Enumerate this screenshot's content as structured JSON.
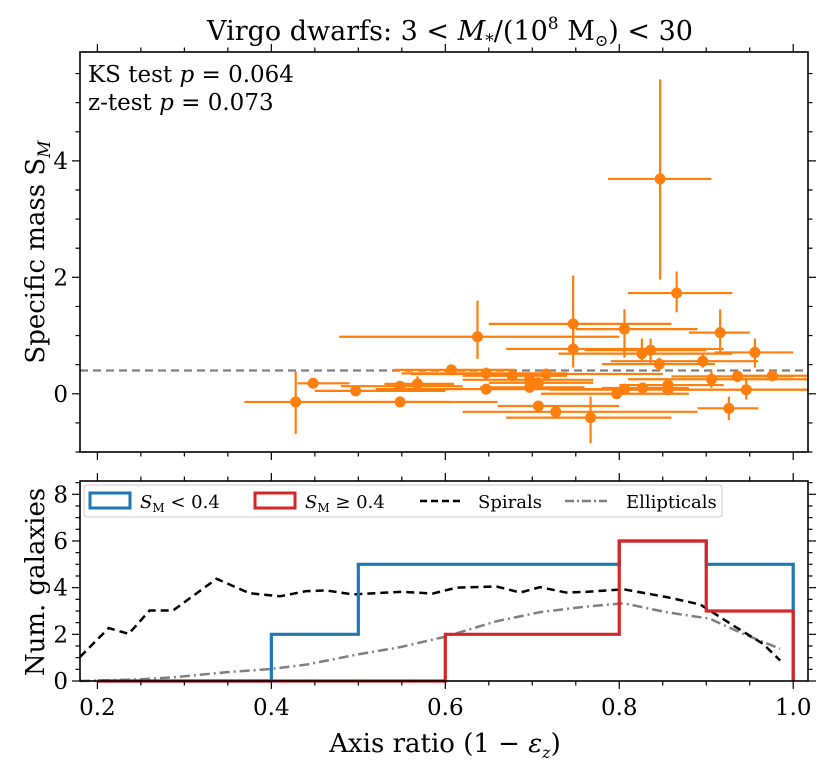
{
  "chart_data": [
    {
      "type": "scatter",
      "title": "Virgo dwarfs: 3 < M*/(10^8 M☉) < 30",
      "title_parts": {
        "pre": "Virgo dwarfs: 3 < ",
        "math": "M",
        "sub": "*",
        "mid": "/(10",
        "sup": "8",
        "post1": " M",
        "sun": "⊙",
        "post2": ") < 30"
      },
      "xlabel": "",
      "ylabel": "Specific mass S",
      "ylabel_sub": "M",
      "xlim": [
        0.18,
        1.017
      ],
      "ylim": [
        -1.0,
        5.87
      ],
      "yticks": [
        0,
        2,
        4
      ],
      "yticks_labels": [
        "0",
        "2",
        "4"
      ],
      "annotations": [
        "KS test p = 0.064",
        "z-test p = 0.073"
      ],
      "annotation_parts": [
        {
          "pre": "KS test ",
          "var": "p",
          "post": " = 0.064"
        },
        {
          "pre": "z-test ",
          "var": "p",
          "post": " = 0.073"
        }
      ],
      "threshold_line": {
        "y": 0.4,
        "style": "dashed",
        "color": "#808080"
      },
      "marker_color": "#ff7f0e",
      "points": [
        {
          "x": 0.428,
          "y": -0.14,
          "xerr": [
            0.369,
            0.607
          ],
          "yerr": [
            -0.69,
            0.38
          ]
        },
        {
          "x": 0.448,
          "y": 0.18,
          "xerr": [
            0.43,
            0.49
          ],
          "yerr": [
            0.12,
            0.24
          ]
        },
        {
          "x": 0.497,
          "y": 0.05,
          "xerr": [
            0.45,
            0.6
          ],
          "yerr": [
            0.0,
            0.1
          ]
        },
        {
          "x": 0.548,
          "y": 0.13,
          "xerr": [
            0.48,
            0.62
          ],
          "yerr": [
            0.06,
            0.2
          ]
        },
        {
          "x": 0.548,
          "y": -0.14,
          "xerr": [
            0.46,
            0.66
          ],
          "yerr": [
            -0.18,
            -0.1
          ]
        },
        {
          "x": 0.568,
          "y": 0.17,
          "xerr": [
            0.53,
            0.61
          ],
          "yerr": [
            0.05,
            0.3
          ]
        },
        {
          "x": 0.607,
          "y": 0.41,
          "xerr": [
            0.54,
            0.68
          ],
          "yerr": [
            0.36,
            0.46
          ]
        },
        {
          "x": 0.637,
          "y": 0.98,
          "xerr": [
            0.478,
            0.8
          ],
          "yerr": [
            0.6,
            1.6
          ]
        },
        {
          "x": 0.647,
          "y": 0.35,
          "xerr": [
            0.55,
            0.74
          ],
          "yerr": [
            0.25,
            0.45
          ]
        },
        {
          "x": 0.647,
          "y": 0.08,
          "xerr": [
            0.52,
            0.76
          ],
          "yerr": [
            0.02,
            0.14
          ]
        },
        {
          "x": 0.677,
          "y": 0.31,
          "xerr": [
            0.62,
            0.74
          ],
          "yerr": [
            0.25,
            0.37
          ]
        },
        {
          "x": 0.697,
          "y": 0.24,
          "xerr": [
            0.62,
            0.77
          ],
          "yerr": [
            0.2,
            0.28
          ]
        },
        {
          "x": 0.697,
          "y": 0.11,
          "xerr": [
            0.64,
            0.76
          ],
          "yerr": [
            0.07,
            0.15
          ]
        },
        {
          "x": 0.707,
          "y": 0.19,
          "xerr": [
            0.65,
            0.77
          ],
          "yerr": [
            0.15,
            0.23
          ]
        },
        {
          "x": 0.707,
          "y": -0.21,
          "xerr": [
            0.66,
            0.8
          ],
          "yerr": [
            -0.25,
            -0.17
          ]
        },
        {
          "x": 0.716,
          "y": 0.34,
          "xerr": [
            0.56,
            0.85
          ],
          "yerr": [
            0.26,
            0.42
          ]
        },
        {
          "x": 0.727,
          "y": -0.31,
          "xerr": [
            0.62,
            0.89
          ],
          "yerr": [
            -0.35,
            -0.27
          ]
        },
        {
          "x": 0.747,
          "y": 1.2,
          "xerr": [
            0.65,
            0.86
          ],
          "yerr": [
            0.75,
            2.03
          ]
        },
        {
          "x": 0.747,
          "y": 0.77,
          "xerr": [
            0.67,
            0.92
          ],
          "yerr": [
            0.45,
            1.1
          ]
        },
        {
          "x": 0.767,
          "y": -0.41,
          "xerr": [
            0.67,
            0.86
          ],
          "yerr": [
            -0.85,
            -0.05
          ]
        },
        {
          "x": 0.797,
          "y": 0.0,
          "xerr": [
            0.71,
            0.88
          ],
          "yerr": [
            -0.05,
            0.05
          ]
        },
        {
          "x": 0.806,
          "y": 1.11,
          "xerr": [
            0.75,
            0.89
          ],
          "yerr": [
            0.62,
            1.45
          ]
        },
        {
          "x": 0.806,
          "y": 0.08,
          "xerr": [
            0.75,
            0.86
          ],
          "yerr": [
            0.04,
            0.12
          ]
        },
        {
          "x": 0.826,
          "y": 0.69,
          "xerr": [
            0.73,
            0.93
          ],
          "yerr": [
            0.55,
            0.95
          ]
        },
        {
          "x": 0.827,
          "y": 0.1,
          "xerr": [
            0.78,
            0.88
          ],
          "yerr": [
            0.06,
            0.14
          ]
        },
        {
          "x": 0.836,
          "y": 0.75,
          "xerr": [
            0.76,
            0.9
          ],
          "yerr": [
            0.5,
            0.95
          ]
        },
        {
          "x": 0.847,
          "y": 3.69,
          "xerr": [
            0.787,
            0.906
          ],
          "yerr": [
            1.96,
            5.4
          ]
        },
        {
          "x": 0.846,
          "y": 0.51,
          "xerr": [
            0.78,
            0.91
          ],
          "yerr": [
            0.4,
            0.62
          ]
        },
        {
          "x": 0.856,
          "y": 0.15,
          "xerr": [
            0.8,
            0.92
          ],
          "yerr": [
            0.08,
            0.22
          ]
        },
        {
          "x": 0.856,
          "y": 0.07,
          "xerr": [
            0.72,
            1.017
          ],
          "yerr": [
            0.02,
            0.12
          ]
        },
        {
          "x": 0.866,
          "y": 1.73,
          "xerr": [
            0.81,
            0.93
          ],
          "yerr": [
            1.4,
            2.1
          ]
        },
        {
          "x": 0.896,
          "y": 0.56,
          "xerr": [
            0.79,
            0.96
          ],
          "yerr": [
            0.45,
            0.68
          ]
        },
        {
          "x": 0.906,
          "y": 0.25,
          "xerr": [
            0.81,
            1.017
          ],
          "yerr": [
            0.1,
            0.4
          ]
        },
        {
          "x": 0.916,
          "y": 1.05,
          "xerr": [
            0.88,
            0.95
          ],
          "yerr": [
            0.7,
            1.45
          ]
        },
        {
          "x": 0.926,
          "y": -0.25,
          "xerr": [
            0.89,
            0.96
          ],
          "yerr": [
            -0.45,
            -0.05
          ]
        },
        {
          "x": 0.936,
          "y": 0.3,
          "xerr": [
            0.86,
            1.0
          ],
          "yerr": [
            0.2,
            0.4
          ]
        },
        {
          "x": 0.946,
          "y": 0.07,
          "xerr": [
            0.85,
            1.017
          ],
          "yerr": [
            -0.1,
            0.25
          ]
        },
        {
          "x": 0.956,
          "y": 0.71,
          "xerr": [
            0.91,
            1.0
          ],
          "yerr": [
            0.45,
            0.95
          ]
        },
        {
          "x": 0.976,
          "y": 0.31,
          "xerr": [
            0.93,
            1.017
          ],
          "yerr": [
            0.25,
            0.37
          ]
        }
      ]
    },
    {
      "type": "histogram",
      "xlabel": "Axis ratio (1 − εz)",
      "xlabel_parts": {
        "pre": "Axis ratio (1 − ",
        "var": "ε",
        "sub": "z",
        "post": ")"
      },
      "ylabel": "Num. galaxies",
      "xlim": [
        0.18,
        1.017
      ],
      "ylim": [
        0,
        8.57
      ],
      "xticks": [
        0.2,
        0.4,
        0.6,
        0.8,
        1.0
      ],
      "xticks_labels": [
        "0.2",
        "0.4",
        "0.6",
        "0.8",
        "1.0"
      ],
      "yticks": [
        0,
        2,
        4,
        6,
        8
      ],
      "yticks_labels": [
        "0",
        "2",
        "4",
        "6",
        "8"
      ],
      "legend_position": "top",
      "bin_edges": [
        0.2,
        0.3,
        0.4,
        0.5,
        0.6,
        0.7,
        0.8,
        0.9,
        1.0
      ],
      "series": [
        {
          "name": "S_M < 0.4",
          "label_var": "S",
          "label_sub": "M",
          "label_rel": " < 0.4",
          "kind": "step",
          "color": "#1f77b4",
          "values": [
            0,
            0,
            2,
            5,
            5,
            5,
            6,
            5
          ]
        },
        {
          "name": "S_M ≥ 0.4",
          "label_var": "S",
          "label_sub": "M",
          "label_rel": " ≥ 0.4",
          "kind": "step",
          "color": "#d62728",
          "values": [
            0,
            0,
            0,
            0,
            2,
            2,
            6,
            3
          ]
        },
        {
          "name": "Spirals",
          "label": "Spirals",
          "kind": "line",
          "style": "dashed",
          "color": "#000000",
          "x": [
            0.18,
            0.213,
            0.236,
            0.26,
            0.287,
            0.337,
            0.375,
            0.41,
            0.44,
            0.463,
            0.494,
            0.548,
            0.586,
            0.613,
            0.659,
            0.686,
            0.709,
            0.739,
            0.762,
            0.805,
            0.854,
            0.893,
            0.931,
            0.965,
            0.985
          ],
          "y": [
            1.03,
            2.27,
            2.02,
            3.02,
            3.02,
            4.38,
            3.76,
            3.63,
            3.85,
            3.88,
            3.71,
            3.82,
            3.75,
            4.0,
            4.05,
            3.79,
            4.02,
            3.79,
            3.82,
            3.93,
            3.6,
            3.28,
            2.38,
            1.6,
            0.88
          ]
        },
        {
          "name": "Ellipticals",
          "label": "Ellipticals",
          "kind": "line",
          "style": "dashdot",
          "color": "#808080",
          "x": [
            0.18,
            0.249,
            0.291,
            0.349,
            0.398,
            0.44,
            0.498,
            0.548,
            0.598,
            0.659,
            0.709,
            0.762,
            0.805,
            0.854,
            0.904,
            0.942,
            0.985
          ],
          "y": [
            0.0,
            0.07,
            0.17,
            0.38,
            0.51,
            0.7,
            1.13,
            1.45,
            1.88,
            2.56,
            2.95,
            3.19,
            3.33,
            2.95,
            2.67,
            2.03,
            1.38
          ]
        }
      ]
    }
  ]
}
